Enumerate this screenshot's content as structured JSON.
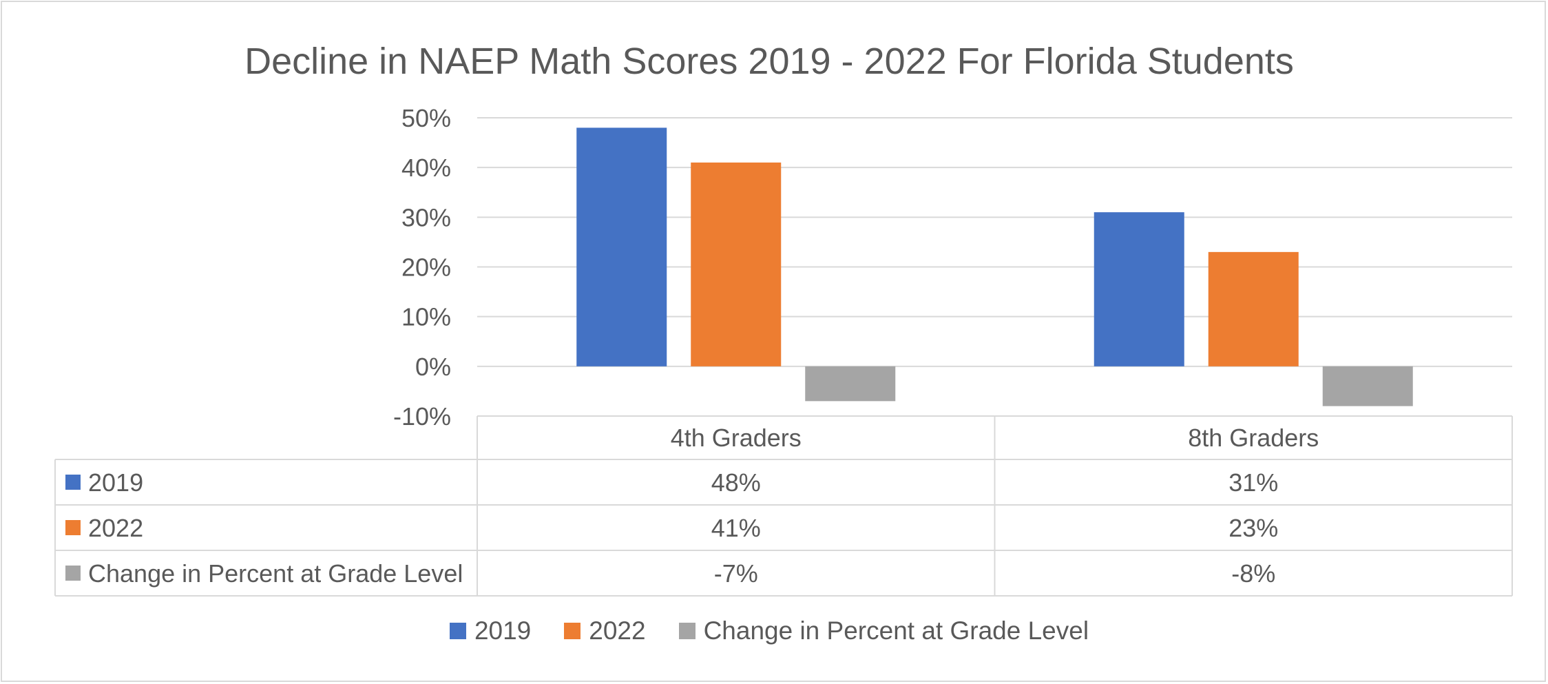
{
  "chart_data": {
    "type": "bar",
    "title": "Decline in NAEP Math Scores 2019 - 2022 For Florida Students",
    "categories": [
      "4th Graders",
      "8th Graders"
    ],
    "series": [
      {
        "name": "2019",
        "values": [
          48,
          31
        ],
        "labels": [
          "48%",
          "31%"
        ],
        "color": "#4472C4"
      },
      {
        "name": "2022",
        "values": [
          41,
          23
        ],
        "labels": [
          "41%",
          "23%"
        ],
        "color": "#ED7D31"
      },
      {
        "name": "Change in Percent at Grade Level",
        "values": [
          -7,
          -8
        ],
        "labels": [
          "-7%",
          "-8%"
        ],
        "color": "#A5A5A5"
      }
    ],
    "ylim": [
      -10,
      50
    ],
    "yticks": [
      50,
      40,
      30,
      20,
      10,
      0,
      -10
    ],
    "ytick_labels": [
      "50%",
      "40%",
      "30%",
      "20%",
      "10%",
      "0%",
      "-10%"
    ],
    "grid": true,
    "data_table": true,
    "legend_position": "bottom"
  }
}
